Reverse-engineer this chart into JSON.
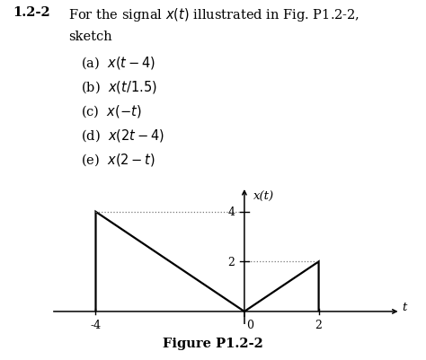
{
  "signal_x": [
    -4,
    -4,
    0,
    2,
    2
  ],
  "signal_y": [
    0,
    4,
    0,
    2,
    0
  ],
  "dot_line1_x": [
    -4,
    0
  ],
  "dot_line1_y": [
    4,
    4
  ],
  "dot_line2_x": [
    0,
    2
  ],
  "dot_line2_y": [
    2,
    2
  ],
  "xlim": [
    -5.2,
    4.2
  ],
  "ylim": [
    -0.5,
    5.0
  ],
  "xticks_nonzero": [
    -4,
    2
  ],
  "yticks": [
    2,
    4
  ],
  "xlabel_t": "t",
  "ylabel_xt": "x(t)",
  "figure_label": "Figure P1.2-2",
  "text_problem": "1.2-2",
  "signal_color": "#000000",
  "dot_color": "#777777",
  "background_color": "#ffffff"
}
